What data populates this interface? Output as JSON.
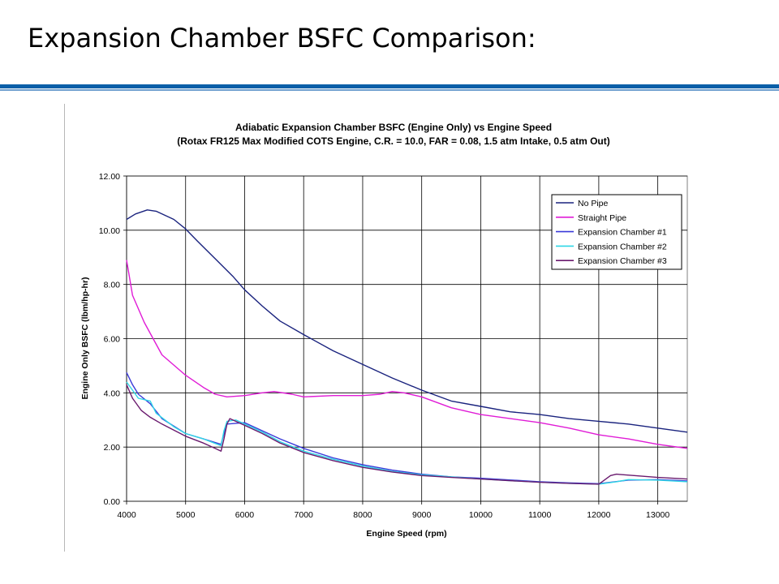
{
  "slide": {
    "title": "Expansion Chamber BSFC Comparison:",
    "colors": {
      "title_rule": "#0b5fa8",
      "title_rule_light": "#6f9fcf"
    }
  },
  "chart_data": {
    "type": "line",
    "title": "Adiabatic Expansion Chamber BSFC (Engine Only) vs Engine Speed",
    "subtitle": "(Rotax FR125 Max Modified COTS Engine, C.R. = 10.0, FAR = 0.08, 1.5 atm Intake, 0.5 atm Out)",
    "xlabel": "Engine Speed (rpm)",
    "ylabel": "Engine Only BSFC (lbm/hp-hr)",
    "xlim": [
      4000,
      13500
    ],
    "ylim": [
      0,
      12
    ],
    "x_ticks": [
      4000,
      5000,
      6000,
      7000,
      8000,
      9000,
      10000,
      11000,
      12000,
      13000
    ],
    "y_ticks": [
      "0.00",
      "2.00",
      "4.00",
      "6.00",
      "8.00",
      "10.00",
      "12.00"
    ],
    "y_tick_values": [
      0,
      2,
      4,
      6,
      8,
      10,
      12
    ],
    "grid": true,
    "legend_position": "top-right",
    "plot_background": "#ffffff",
    "series": [
      {
        "name": "No Pipe",
        "color": "#1a237e",
        "points": [
          [
            4000,
            10.4
          ],
          [
            4150,
            10.6
          ],
          [
            4350,
            10.75
          ],
          [
            4500,
            10.7
          ],
          [
            4800,
            10.4
          ],
          [
            5000,
            10.05
          ],
          [
            5200,
            9.6
          ],
          [
            5500,
            8.95
          ],
          [
            5800,
            8.3
          ],
          [
            6000,
            7.8
          ],
          [
            6300,
            7.2
          ],
          [
            6600,
            6.65
          ],
          [
            7000,
            6.15
          ],
          [
            7500,
            5.55
          ],
          [
            8000,
            5.05
          ],
          [
            8500,
            4.55
          ],
          [
            9000,
            4.1
          ],
          [
            9500,
            3.7
          ],
          [
            10000,
            3.5
          ],
          [
            10500,
            3.3
          ],
          [
            11000,
            3.2
          ],
          [
            11500,
            3.05
          ],
          [
            12000,
            2.95
          ],
          [
            12500,
            2.85
          ],
          [
            13000,
            2.7
          ],
          [
            13500,
            2.55
          ]
        ]
      },
      {
        "name": "Straight Pipe",
        "color": "#e01cd6",
        "points": [
          [
            4000,
            8.9
          ],
          [
            4100,
            7.6
          ],
          [
            4300,
            6.6
          ],
          [
            4600,
            5.4
          ],
          [
            5000,
            4.65
          ],
          [
            5300,
            4.2
          ],
          [
            5500,
            3.95
          ],
          [
            5700,
            3.85
          ],
          [
            6000,
            3.9
          ],
          [
            6300,
            4.0
          ],
          [
            6500,
            4.05
          ],
          [
            6800,
            3.95
          ],
          [
            7000,
            3.85
          ],
          [
            7500,
            3.9
          ],
          [
            8000,
            3.9
          ],
          [
            8300,
            3.95
          ],
          [
            8500,
            4.05
          ],
          [
            8700,
            4.0
          ],
          [
            9000,
            3.85
          ],
          [
            9500,
            3.45
          ],
          [
            10000,
            3.2
          ],
          [
            10500,
            3.05
          ],
          [
            11000,
            2.9
          ],
          [
            11500,
            2.7
          ],
          [
            12000,
            2.45
          ],
          [
            12500,
            2.3
          ],
          [
            13000,
            2.1
          ],
          [
            13500,
            1.95
          ]
        ]
      },
      {
        "name": "Expansion Chamber #1",
        "color": "#3a3ad8",
        "points": [
          [
            4000,
            4.75
          ],
          [
            4100,
            4.3
          ],
          [
            4200,
            3.95
          ],
          [
            4400,
            3.6
          ],
          [
            4600,
            3.05
          ],
          [
            5000,
            2.5
          ],
          [
            5300,
            2.3
          ],
          [
            5600,
            2.1
          ],
          [
            5650,
            2.5
          ],
          [
            5700,
            2.85
          ],
          [
            6000,
            2.9
          ],
          [
            6300,
            2.6
          ],
          [
            6600,
            2.3
          ],
          [
            7000,
            1.95
          ],
          [
            7500,
            1.6
          ],
          [
            8000,
            1.35
          ],
          [
            8500,
            1.15
          ],
          [
            9000,
            1.0
          ],
          [
            9500,
            0.9
          ],
          [
            10000,
            0.85
          ],
          [
            11000,
            0.72
          ],
          [
            11500,
            0.68
          ],
          [
            12000,
            0.65
          ],
          [
            12200,
            0.7
          ],
          [
            12500,
            0.78
          ],
          [
            13000,
            0.8
          ],
          [
            13500,
            0.75
          ]
        ]
      },
      {
        "name": "Expansion Chamber #2",
        "color": "#2ed6e6",
        "points": [
          [
            4000,
            4.4
          ],
          [
            4100,
            4.1
          ],
          [
            4200,
            3.8
          ],
          [
            4400,
            3.7
          ],
          [
            4500,
            3.25
          ],
          [
            4800,
            2.75
          ],
          [
            5000,
            2.5
          ],
          [
            5300,
            2.3
          ],
          [
            5600,
            2.05
          ],
          [
            5650,
            2.6
          ],
          [
            5700,
            2.95
          ],
          [
            5850,
            3.0
          ],
          [
            6000,
            2.85
          ],
          [
            6300,
            2.55
          ],
          [
            6600,
            2.2
          ],
          [
            7000,
            1.85
          ],
          [
            7500,
            1.55
          ],
          [
            8000,
            1.3
          ],
          [
            8500,
            1.1
          ],
          [
            9000,
            0.98
          ],
          [
            9500,
            0.9
          ],
          [
            10000,
            0.82
          ],
          [
            11000,
            0.7
          ],
          [
            11500,
            0.66
          ],
          [
            12000,
            0.63
          ],
          [
            12300,
            0.72
          ],
          [
            12500,
            0.8
          ],
          [
            13000,
            0.78
          ],
          [
            13500,
            0.72
          ]
        ]
      },
      {
        "name": "Expansion Chamber #3",
        "color": "#6a1a6e",
        "points": [
          [
            4000,
            4.3
          ],
          [
            4100,
            3.8
          ],
          [
            4250,
            3.35
          ],
          [
            4400,
            3.1
          ],
          [
            4600,
            2.85
          ],
          [
            5000,
            2.4
          ],
          [
            5300,
            2.15
          ],
          [
            5500,
            1.95
          ],
          [
            5600,
            1.85
          ],
          [
            5650,
            2.3
          ],
          [
            5700,
            2.85
          ],
          [
            5750,
            3.05
          ],
          [
            6000,
            2.8
          ],
          [
            6300,
            2.5
          ],
          [
            6600,
            2.15
          ],
          [
            7000,
            1.8
          ],
          [
            7500,
            1.5
          ],
          [
            8000,
            1.25
          ],
          [
            8500,
            1.08
          ],
          [
            9000,
            0.95
          ],
          [
            9500,
            0.88
          ],
          [
            10000,
            0.82
          ],
          [
            11000,
            0.7
          ],
          [
            11500,
            0.66
          ],
          [
            12000,
            0.63
          ],
          [
            12200,
            0.95
          ],
          [
            12300,
            1.0
          ],
          [
            12600,
            0.95
          ],
          [
            13000,
            0.88
          ],
          [
            13500,
            0.82
          ]
        ]
      }
    ]
  }
}
